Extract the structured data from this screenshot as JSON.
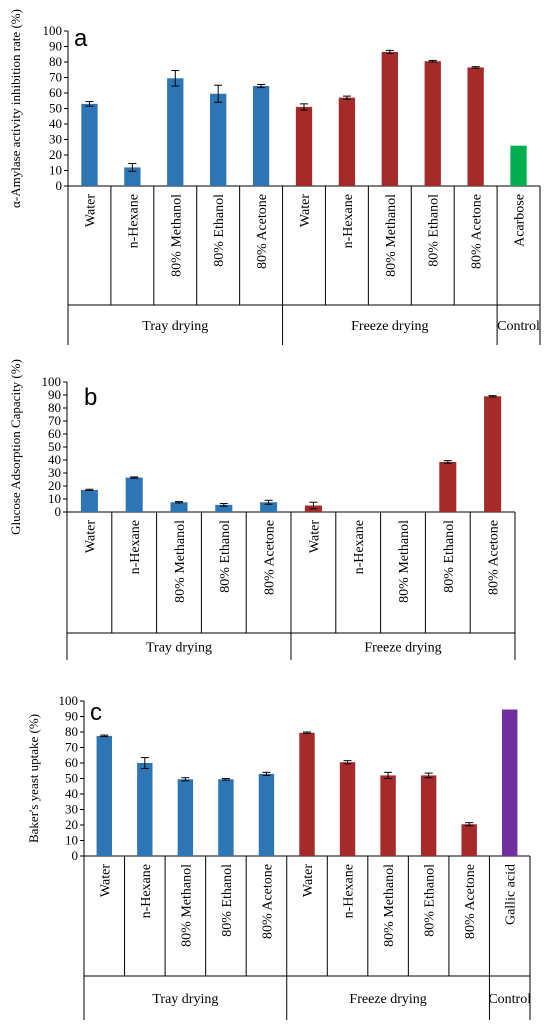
{
  "colors": {
    "blue": "#2e75b6",
    "red": "#a52a2a",
    "green": "#00b050",
    "purple": "#7030a0"
  },
  "chart_data": [
    {
      "type": "bar",
      "panel_label": "a",
      "ylabel": "α-Amylase activity inhibition rate (%)",
      "ylim": [
        0,
        100
      ],
      "yticks": [
        "0",
        "10",
        "20",
        "30",
        "40",
        "50",
        "60",
        "70",
        "80",
        "90",
        "100"
      ],
      "grid": false,
      "categories": [
        "Water",
        "n-Hexane",
        "80% Methanol",
        "80% Ethanol",
        "80% Acetone",
        "Water",
        "n-Hexane",
        "80% Methanol",
        "80% Ethanol",
        "80% Acetone",
        "Acarbose"
      ],
      "values": [
        53,
        12,
        69.5,
        59.5,
        64.5,
        51,
        57,
        86.5,
        80.5,
        76.5,
        26
      ],
      "errors": [
        1.5,
        2.5,
        5,
        5.5,
        1,
        2,
        1,
        1,
        0.5,
        0.5,
        0
      ],
      "bar_colors": [
        "blue",
        "blue",
        "blue",
        "blue",
        "blue",
        "red",
        "red",
        "red",
        "red",
        "red",
        "green"
      ],
      "groups": [
        {
          "label": "Tray drying",
          "start": 0,
          "end": 5
        },
        {
          "label": "Freeze drying",
          "start": 5,
          "end": 10
        },
        {
          "label": "Control",
          "start": 10,
          "end": 11
        }
      ]
    },
    {
      "type": "bar",
      "panel_label": "b",
      "ylabel": "Glucose Adsorption Capacity (%)",
      "ylim": [
        0,
        100
      ],
      "yticks": [
        "0",
        "10",
        "20",
        "30",
        "40",
        "50",
        "60",
        "70",
        "80",
        "90",
        "100"
      ],
      "grid": false,
      "categories": [
        "Water",
        "n-Hexane",
        "80% Methanol",
        "80% Ethanol",
        "80% Acetone",
        "Water",
        "n-Hexane",
        "80% Methanol",
        "80% Ethanol",
        "80% Acetone"
      ],
      "values": [
        17,
        26.5,
        7.5,
        5.5,
        7.5,
        5,
        0,
        0,
        38.5,
        89
      ],
      "errors": [
        0.5,
        0.5,
        0.5,
        1,
        1.5,
        2.5,
        0,
        0,
        1,
        0.5
      ],
      "bar_colors": [
        "blue",
        "blue",
        "blue",
        "blue",
        "blue",
        "red",
        "red",
        "red",
        "red",
        "red"
      ],
      "groups": [
        {
          "label": "Tray drying",
          "start": 0,
          "end": 5
        },
        {
          "label": "Freeze drying",
          "start": 5,
          "end": 10
        }
      ]
    },
    {
      "type": "bar",
      "panel_label": "c",
      "ylabel": "Baker's yeast uptake (%)",
      "ylim": [
        0,
        100
      ],
      "yticks": [
        "0",
        "10",
        "20",
        "30",
        "40",
        "50",
        "60",
        "70",
        "80",
        "90",
        "100"
      ],
      "grid": false,
      "categories": [
        "Water",
        "n-Hexane",
        "80% Methanol",
        "80% Ethanol",
        "80% Acetone",
        "Water",
        "n-Hexane",
        "80% Methanol",
        "80% Ethanol",
        "80% Acetone",
        "Gallic acid"
      ],
      "values": [
        77.5,
        60,
        49.5,
        49.5,
        53,
        79.5,
        60.5,
        52,
        52,
        20.5,
        94.5
      ],
      "errors": [
        0.5,
        3.5,
        1,
        0.5,
        1,
        0.5,
        1,
        2,
        1.5,
        1,
        0
      ],
      "bar_colors": [
        "blue",
        "blue",
        "blue",
        "blue",
        "blue",
        "red",
        "red",
        "red",
        "red",
        "red",
        "purple"
      ],
      "groups": [
        {
          "label": "Tray drying",
          "start": 0,
          "end": 5
        },
        {
          "label": "Freeze drying",
          "start": 5,
          "end": 10
        },
        {
          "label": "Control",
          "start": 10,
          "end": 11
        }
      ]
    }
  ]
}
